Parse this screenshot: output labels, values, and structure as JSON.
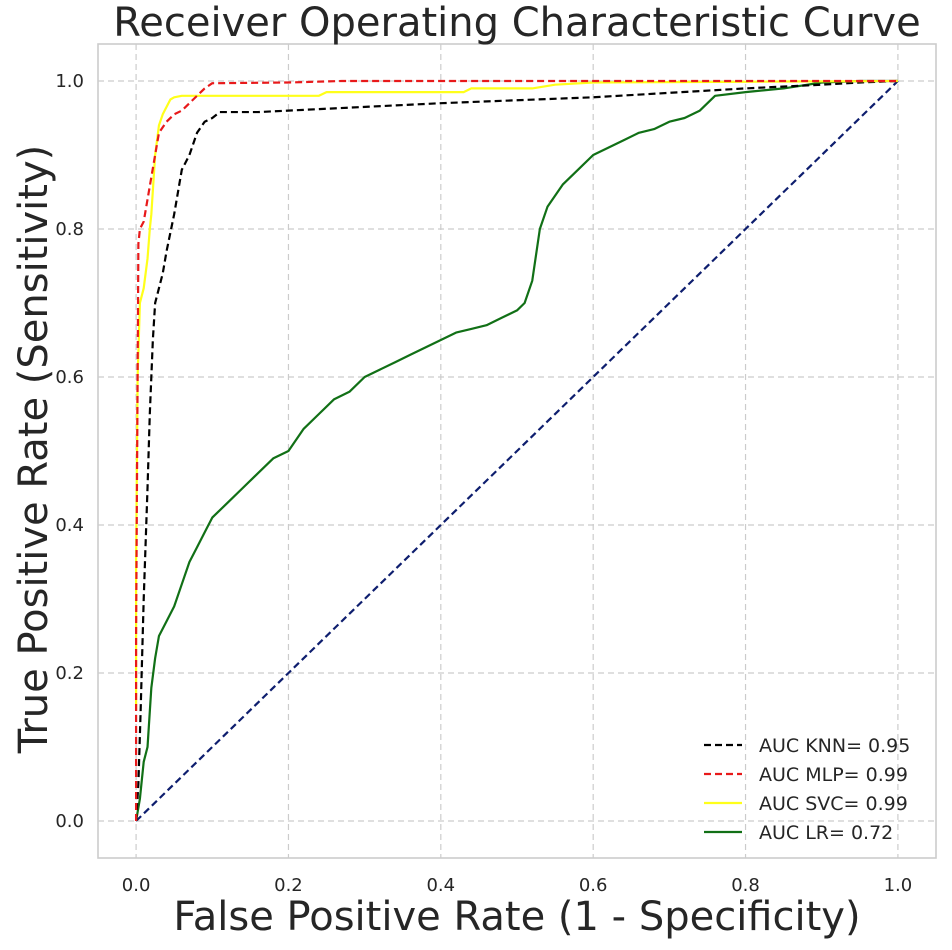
{
  "chart_data": {
    "type": "line",
    "title": "Receiver Operating Characteristic Curve",
    "xlabel": "False Positive Rate (1 - Specificity)",
    "ylabel": "True Positive Rate (Sensitivity)",
    "xlim": [
      -0.05,
      1.05
    ],
    "ylim": [
      -0.05,
      1.05
    ],
    "xticks": [
      "0.0",
      "0.2",
      "0.4",
      "0.6",
      "0.8",
      "1.0"
    ],
    "yticks": [
      "0.0",
      "0.2",
      "0.4",
      "0.6",
      "0.8",
      "1.0"
    ],
    "grid": true,
    "legend_position": "lower-right",
    "series": [
      {
        "name": "AUC KNN= 0.95",
        "color": "#000000",
        "dash": "dashed",
        "points": [
          [
            0,
            0
          ],
          [
            0.003,
            0.05
          ],
          [
            0.006,
            0.15
          ],
          [
            0.01,
            0.3
          ],
          [
            0.015,
            0.45
          ],
          [
            0.018,
            0.55
          ],
          [
            0.022,
            0.65
          ],
          [
            0.025,
            0.7
          ],
          [
            0.03,
            0.72
          ],
          [
            0.035,
            0.74
          ],
          [
            0.04,
            0.77
          ],
          [
            0.05,
            0.82
          ],
          [
            0.06,
            0.88
          ],
          [
            0.07,
            0.9
          ],
          [
            0.08,
            0.93
          ],
          [
            0.09,
            0.945
          ],
          [
            0.1,
            0.95
          ],
          [
            0.11,
            0.958
          ],
          [
            0.16,
            0.958
          ],
          [
            0.4,
            0.97
          ],
          [
            0.6,
            0.978
          ],
          [
            0.8,
            0.99
          ],
          [
            0.9,
            0.995
          ],
          [
            0.95,
            0.998
          ],
          [
            1,
            1
          ]
        ]
      },
      {
        "name": "AUC MLP= 0.99",
        "color": "#e8191a",
        "dash": "dashed",
        "points": [
          [
            0,
            0
          ],
          [
            0,
            0.25
          ],
          [
            0.002,
            0.6
          ],
          [
            0.003,
            0.78
          ],
          [
            0.005,
            0.8
          ],
          [
            0.01,
            0.81
          ],
          [
            0.015,
            0.84
          ],
          [
            0.02,
            0.87
          ],
          [
            0.025,
            0.9
          ],
          [
            0.03,
            0.93
          ],
          [
            0.04,
            0.945
          ],
          [
            0.05,
            0.955
          ],
          [
            0.06,
            0.96
          ],
          [
            0.07,
            0.97
          ],
          [
            0.08,
            0.98
          ],
          [
            0.09,
            0.99
          ],
          [
            0.1,
            0.997
          ],
          [
            0.2,
            0.998
          ],
          [
            0.27,
            1.0
          ],
          [
            1,
            1
          ]
        ]
      },
      {
        "name": "AUC SVC= 0.99",
        "color": "#ffff1a",
        "dash": "solid",
        "points": [
          [
            0,
            0.15
          ],
          [
            0,
            0.35
          ],
          [
            0.002,
            0.6
          ],
          [
            0.005,
            0.7
          ],
          [
            0.01,
            0.72
          ],
          [
            0.015,
            0.76
          ],
          [
            0.018,
            0.8
          ],
          [
            0.02,
            0.82
          ],
          [
            0.025,
            0.9
          ],
          [
            0.03,
            0.94
          ],
          [
            0.035,
            0.955
          ],
          [
            0.04,
            0.965
          ],
          [
            0.045,
            0.975
          ],
          [
            0.05,
            0.978
          ],
          [
            0.06,
            0.98
          ],
          [
            0.1,
            0.98
          ],
          [
            0.24,
            0.98
          ],
          [
            0.25,
            0.985
          ],
          [
            0.43,
            0.985
          ],
          [
            0.44,
            0.99
          ],
          [
            0.52,
            0.99
          ],
          [
            0.55,
            0.995
          ],
          [
            0.6,
            0.998
          ],
          [
            0.8,
            0.999
          ],
          [
            1,
            1
          ]
        ]
      },
      {
        "name": "AUC LR= 0.72",
        "color": "#117016",
        "dash": "solid",
        "points": [
          [
            0,
            0
          ],
          [
            0.005,
            0.03
          ],
          [
            0.01,
            0.08
          ],
          [
            0.015,
            0.1
          ],
          [
            0.02,
            0.18
          ],
          [
            0.025,
            0.22
          ],
          [
            0.03,
            0.25
          ],
          [
            0.04,
            0.27
          ],
          [
            0.05,
            0.29
          ],
          [
            0.06,
            0.32
          ],
          [
            0.07,
            0.35
          ],
          [
            0.08,
            0.37
          ],
          [
            0.09,
            0.39
          ],
          [
            0.1,
            0.41
          ],
          [
            0.12,
            0.43
          ],
          [
            0.14,
            0.45
          ],
          [
            0.16,
            0.47
          ],
          [
            0.18,
            0.49
          ],
          [
            0.2,
            0.5
          ],
          [
            0.22,
            0.53
          ],
          [
            0.24,
            0.55
          ],
          [
            0.26,
            0.57
          ],
          [
            0.28,
            0.58
          ],
          [
            0.3,
            0.6
          ],
          [
            0.32,
            0.61
          ],
          [
            0.34,
            0.62
          ],
          [
            0.36,
            0.63
          ],
          [
            0.38,
            0.64
          ],
          [
            0.4,
            0.65
          ],
          [
            0.42,
            0.66
          ],
          [
            0.44,
            0.665
          ],
          [
            0.46,
            0.67
          ],
          [
            0.48,
            0.68
          ],
          [
            0.5,
            0.69
          ],
          [
            0.51,
            0.7
          ],
          [
            0.52,
            0.73
          ],
          [
            0.53,
            0.8
          ],
          [
            0.54,
            0.83
          ],
          [
            0.56,
            0.86
          ],
          [
            0.58,
            0.88
          ],
          [
            0.6,
            0.9
          ],
          [
            0.62,
            0.91
          ],
          [
            0.64,
            0.92
          ],
          [
            0.66,
            0.93
          ],
          [
            0.68,
            0.935
          ],
          [
            0.7,
            0.945
          ],
          [
            0.72,
            0.95
          ],
          [
            0.74,
            0.96
          ],
          [
            0.76,
            0.98
          ],
          [
            0.8,
            0.985
          ],
          [
            0.85,
            0.99
          ],
          [
            0.9,
            0.998
          ],
          [
            0.95,
            1.0
          ],
          [
            1,
            1
          ]
        ]
      },
      {
        "name": "",
        "color": "#0e1e6e",
        "dash": "dashed",
        "points": [
          [
            0,
            0
          ],
          [
            1,
            1
          ]
        ]
      }
    ]
  }
}
